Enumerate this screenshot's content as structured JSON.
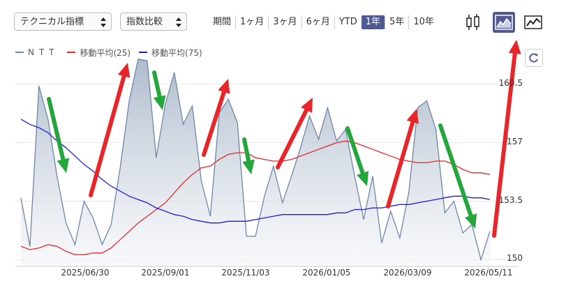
{
  "toolbar": {
    "technical_select": "テクニカル指標",
    "compare_select": "指数比較",
    "period_label": "期間",
    "periods": [
      "1ヶ月",
      "3ヶ月",
      "6ヶ月",
      "YTD",
      "1年",
      "5年",
      "10年"
    ],
    "active_period": "1年",
    "chart_types": [
      "candlestick-icon",
      "area-chart-icon",
      "line-chart-icon"
    ],
    "active_chart_type": "area-chart-icon"
  },
  "legend": {
    "items": [
      {
        "label": "NTT",
        "color": "#6f86a8"
      },
      {
        "label": "移動平均(25)",
        "color": "#e8262a"
      },
      {
        "label": "移動平均(75)",
        "color": "#1c1cde"
      }
    ]
  },
  "colors": {
    "accent": "#505a92",
    "area_fill_top": "#aab8c9",
    "area_fill_bottom": "#f3f5f8",
    "annotation_up": "#e8262a",
    "annotation_down": "#23a63a"
  },
  "chart_data": {
    "type": "area",
    "ylim": [
      149.6,
      162.2
    ],
    "yticks": [
      "160.5",
      "157",
      "153.5",
      "150"
    ],
    "ytick_values": [
      160.5,
      157,
      153.5,
      150
    ],
    "xticks": [
      "2025/06/30",
      "2025/09/01",
      "2025/11/03",
      "2026/01/05",
      "2026/03/09",
      "2026/05/11"
    ],
    "series": [
      {
        "name": "NTT",
        "values": [
          153.7,
          150.8,
          160.4,
          158.4,
          155,
          152.2,
          150.9,
          153.5,
          152.5,
          150.9,
          152.1,
          155.5,
          159.5,
          162,
          161.9,
          156.1,
          159.3,
          161.2,
          158.1,
          159.2,
          154.7,
          152.6,
          158.8,
          159.6,
          158.2,
          151.4,
          151.4,
          153.8,
          155.6,
          153.4,
          155,
          156.7,
          158.6,
          157.2,
          159.1,
          157.1,
          157.8,
          155,
          152.4,
          155,
          151,
          152.9,
          151.3,
          154,
          159.1,
          159.5,
          157.8,
          152.8,
          153.5,
          151.6,
          152.1,
          150,
          151.7
        ],
        "color": "#6f86a8"
      },
      {
        "name": "移動平均(25)",
        "values": [
          150.8,
          150.6,
          150.7,
          150.9,
          150.8,
          150.5,
          150.3,
          150.3,
          150.4,
          150.4,
          150.7,
          151.2,
          151.7,
          152.2,
          152.6,
          153,
          153.4,
          154,
          154.6,
          155.1,
          155.5,
          155.6,
          156,
          156.3,
          156.4,
          156.4,
          156.1,
          156,
          155.9,
          155.9,
          156,
          156.2,
          156.4,
          156.6,
          156.8,
          157,
          157.1,
          157,
          156.8,
          156.6,
          156.4,
          156.2,
          156,
          155.9,
          155.8,
          155.8,
          155.9,
          155.9,
          155.7,
          155.4,
          155.2,
          155.2,
          155.1
        ],
        "color": "#e8262a"
      },
      {
        "name": "移動平均(75)",
        "values": [
          158.4,
          158.1,
          157.9,
          157.6,
          157.1,
          156.7,
          156.2,
          155.7,
          155.3,
          154.8,
          154.4,
          154.1,
          153.8,
          153.6,
          153.4,
          153.1,
          152.9,
          152.7,
          152.6,
          152.4,
          152.3,
          152.2,
          152.2,
          152.3,
          152.3,
          152.3,
          152.4,
          152.5,
          152.6,
          152.7,
          152.7,
          152.7,
          152.7,
          152.7,
          152.7,
          152.8,
          152.8,
          153,
          153,
          153.1,
          153.1,
          153.2,
          153.3,
          153.3,
          153.4,
          153.5,
          153.6,
          153.7,
          153.8,
          153.8,
          153.7,
          153.7,
          153.6
        ],
        "color": "#1c1cde"
      }
    ]
  }
}
